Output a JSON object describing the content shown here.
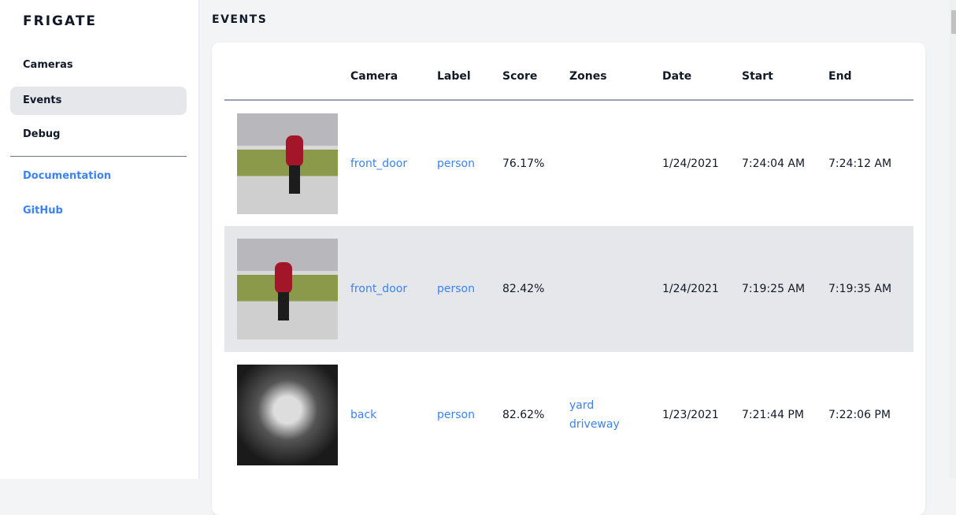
{
  "sidebar": {
    "logo": "FRIGATE",
    "items": [
      {
        "label": "Cameras"
      },
      {
        "label": "Events",
        "active": true
      },
      {
        "label": "Debug"
      }
    ],
    "links": [
      {
        "label": "Documentation"
      },
      {
        "label": "GitHub"
      }
    ]
  },
  "page": {
    "title": "EVENTS"
  },
  "table": {
    "headers": [
      "",
      "Camera",
      "Label",
      "Score",
      "Zones",
      "Date",
      "Start",
      "End"
    ],
    "rows": [
      {
        "camera": "front_door",
        "label": "person",
        "score": "76.17%",
        "zones": [
          "",
          ""
        ],
        "date": "1/24/2021",
        "start": "7:24:04 AM",
        "end": "7:24:12 AM"
      },
      {
        "camera": "front_door",
        "label": "person",
        "score": "82.42%",
        "zones": [
          "",
          ""
        ],
        "date": "1/24/2021",
        "start": "7:19:25 AM",
        "end": "7:19:35 AM"
      },
      {
        "camera": "back",
        "label": "person",
        "score": "82.62%",
        "zones": [
          "yard",
          "driveway"
        ],
        "date": "1/23/2021",
        "start": "7:21:44 PM",
        "end": "7:22:06 PM"
      }
    ]
  },
  "colors": {
    "accent": "#3b82f6",
    "active_bg": "#e5e7eb",
    "page_bg": "#f3f4f6"
  }
}
